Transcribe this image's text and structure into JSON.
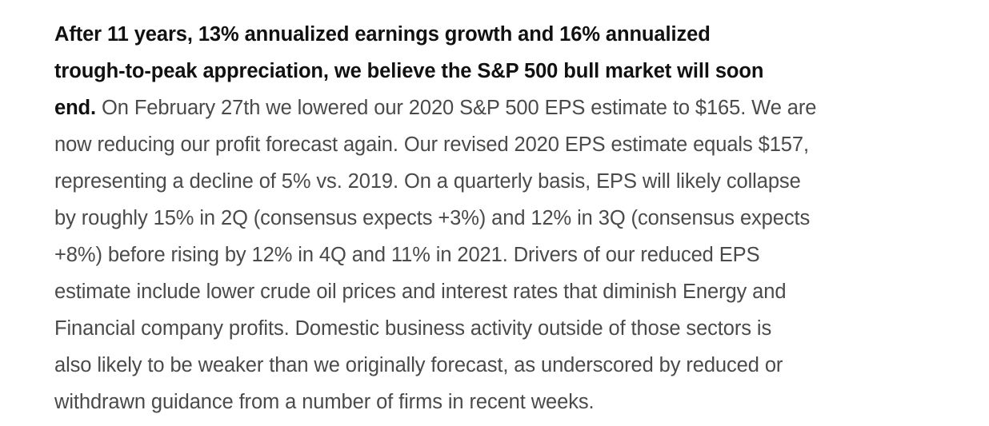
{
  "document": {
    "lead": {
      "line1": "After 11 years, 13% annualized earnings growth and 16% annualized",
      "line2": "trough-to-peak appreciation, we believe the S&P 500 bull market will soon",
      "line3": "end."
    },
    "body": {
      "line3_rest": "On February 27th we lowered our 2020 S&P 500 EPS estimate to $165. We are",
      "line4": "now reducing our profit forecast again. Our revised 2020 EPS estimate equals $157,",
      "line5": "representing a decline of 5% vs. 2019. On a quarterly basis, EPS will likely collapse",
      "line6": "by roughly 15% in 2Q (consensus expects +3%) and 12% in 3Q (consensus expects",
      "line7": "+8%) before rising by 12% in 4Q and 11% in 2021. Drivers of our reduced EPS",
      "line8": "estimate include lower crude oil prices and interest rates that diminish Energy and",
      "line9": "Financial company profits. Domestic business activity outside of those sectors is",
      "line10": "also likely to be weaker than we originally forecast, as underscored by reduced or",
      "line11": "withdrawn guidance from a number of firms in recent weeks."
    }
  }
}
